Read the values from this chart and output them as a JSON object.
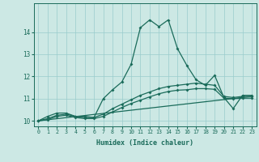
{
  "xlabel": "Humidex (Indice chaleur)",
  "background_color": "#cce8e4",
  "line_color": "#1a6b5a",
  "grid_color": "#99cccc",
  "xlim": [
    -0.5,
    23.5
  ],
  "ylim": [
    9.75,
    15.3
  ],
  "xticks": [
    0,
    1,
    2,
    3,
    4,
    5,
    6,
    7,
    8,
    9,
    10,
    11,
    12,
    13,
    14,
    15,
    16,
    17,
    18,
    19,
    20,
    21,
    22,
    23
  ],
  "yticks": [
    10,
    11,
    12,
    13,
    14
  ],
  "line1_x": [
    0,
    1,
    2,
    3,
    4,
    5,
    6,
    7,
    8,
    9,
    10,
    11,
    12,
    13,
    14,
    15,
    16,
    17,
    18,
    19,
    20,
    21,
    22,
    23
  ],
  "line1_y": [
    10.0,
    10.2,
    10.35,
    10.35,
    10.2,
    10.2,
    10.15,
    11.0,
    11.4,
    11.75,
    12.55,
    14.2,
    14.55,
    14.25,
    14.55,
    13.25,
    12.5,
    11.85,
    11.6,
    12.05,
    11.05,
    10.55,
    11.15,
    11.15
  ],
  "line2_x": [
    0,
    1,
    2,
    3,
    4,
    5,
    6,
    7,
    8,
    9,
    10,
    11,
    12,
    13,
    14,
    15,
    16,
    17,
    18,
    19,
    20,
    21,
    22,
    23
  ],
  "line2_y": [
    10.0,
    10.1,
    10.25,
    10.3,
    10.2,
    10.15,
    10.15,
    10.3,
    10.55,
    10.75,
    10.95,
    11.15,
    11.3,
    11.45,
    11.55,
    11.6,
    11.65,
    11.7,
    11.65,
    11.6,
    11.1,
    11.05,
    11.1,
    11.1
  ],
  "line3_x": [
    0,
    1,
    2,
    3,
    4,
    5,
    6,
    7,
    8,
    9,
    10,
    11,
    12,
    13,
    14,
    15,
    16,
    17,
    18,
    19,
    20,
    21,
    22,
    23
  ],
  "line3_y": [
    10.0,
    10.05,
    10.2,
    10.25,
    10.15,
    10.1,
    10.1,
    10.2,
    10.4,
    10.6,
    10.78,
    10.93,
    11.08,
    11.22,
    11.32,
    11.38,
    11.4,
    11.45,
    11.45,
    11.42,
    11.02,
    11.0,
    11.02,
    11.02
  ],
  "line4_x": [
    0,
    23
  ],
  "line4_y": [
    10.0,
    11.1
  ]
}
